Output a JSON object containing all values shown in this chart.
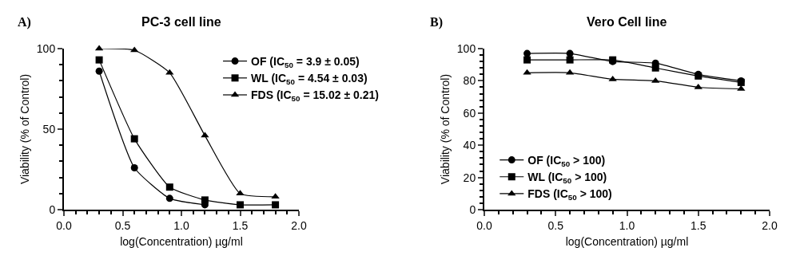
{
  "chart_data": [
    {
      "type": "line",
      "title": "PC-3 cell line",
      "xlabel": "log(Concentration) µg/ml",
      "ylabel": "Viability (% of Control)",
      "annotations": [
        "A)"
      ],
      "x": [
        0.3,
        0.6,
        0.9,
        1.2,
        1.5,
        1.8
      ],
      "xlim": [
        0,
        2
      ],
      "xticks": [
        {
          "value": 0,
          "label": "0.0"
        },
        {
          "value": 0.5,
          "label": "0.5"
        },
        {
          "value": 1,
          "label": "1.0"
        },
        {
          "value": 1.5,
          "label": "1.5"
        },
        {
          "value": 2,
          "label": "2.0"
        }
      ],
      "ylim": [
        0,
        100
      ],
      "yticks": [
        0,
        50,
        100
      ],
      "legend": "top right",
      "line_style": "solid",
      "series": [
        {
          "name": "OF (IC$_{50}$ = 3.9 ± 0.05)",
          "color": "#000000",
          "marker": "circle",
          "values": [
            86,
            26,
            7,
            3,
            null,
            null
          ]
        },
        {
          "name": "WL (IC$_{50}$ = 4.54 ± 0.03)",
          "color": "#000000",
          "marker": "square",
          "values": [
            93,
            44,
            14,
            6,
            3,
            3
          ]
        },
        {
          "name": "FDS (IC$_{50}$ = 15.02 ± 0.21)",
          "color": "#000000",
          "marker": "triangle",
          "values": [
            100,
            99,
            85,
            46,
            10,
            8
          ]
        }
      ]
    },
    {
      "type": "line",
      "title": "Vero Cell line",
      "xlabel": "log(Concentration) µg/ml",
      "ylabel": "Viability (% of Control)",
      "annotations": [
        "B)"
      ],
      "x": [
        0.3,
        0.6,
        0.9,
        1.2,
        1.5,
        1.8
      ],
      "xlim": [
        0,
        2
      ],
      "xticks": [
        {
          "value": 0,
          "label": "0.0"
        },
        {
          "value": 0.5,
          "label": "0.5"
        },
        {
          "value": 1,
          "label": "1.0"
        },
        {
          "value": 1.5,
          "label": "1.5"
        },
        {
          "value": 2,
          "label": "2.0"
        }
      ],
      "ylim": [
        0,
        100
      ],
      "yticks": [
        0,
        20,
        40,
        60,
        80,
        100
      ],
      "legend": "bottom left",
      "line_style": "solid",
      "series": [
        {
          "name": "OF (IC$_{50}$ > 100)",
          "color": "#000000",
          "marker": "circle",
          "values": [
            97,
            97,
            92,
            91,
            84,
            80
          ]
        },
        {
          "name": "WL (IC$_{50}$ > 100)",
          "color": "#000000",
          "marker": "square",
          "values": [
            93,
            93,
            93,
            88,
            83,
            79
          ]
        },
        {
          "name": "FDS (IC$_{50}$ > 100)",
          "color": "#000000",
          "marker": "triangle",
          "values": [
            85,
            85,
            81,
            80,
            76,
            75
          ]
        }
      ]
    }
  ]
}
